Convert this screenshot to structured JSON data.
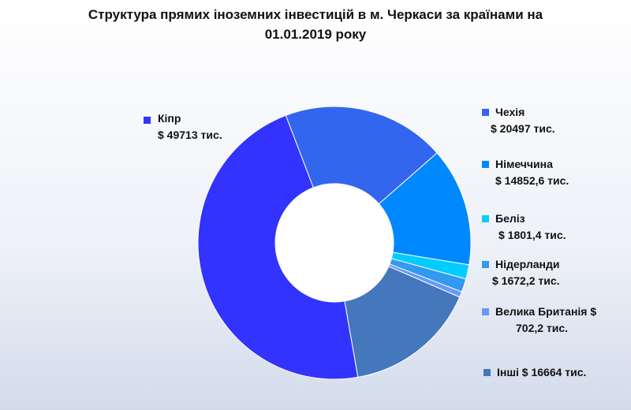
{
  "chart_data": {
    "type": "pie",
    "donut": true,
    "title_lines": [
      "Структура прямих іноземних інвестицій в м. Черкаси за країнами на",
      "01.01.2019 року"
    ],
    "grid": false,
    "legend_placement": "labels-around",
    "slices": [
      {
        "name": "Кіпр",
        "value": 49713,
        "value_label": "$ 49713 тис.",
        "color": "#3333ff"
      },
      {
        "name": "Чехія",
        "value": 20497,
        "value_label": "$ 20497 тис.",
        "color": "#3366ee"
      },
      {
        "name": "Німеччина",
        "value": 14852.6,
        "value_label": "$ 14852,6 тис.",
        "color": "#0088ff"
      },
      {
        "name": "Беліз",
        "value": 1801.4,
        "value_label": "$ 1801,4 тис.",
        "color": "#00ccff"
      },
      {
        "name": "Нідерланди",
        "value": 1672.2,
        "value_label": "$ 1672,2 тис.",
        "color": "#3399ee"
      },
      {
        "name": "Велика Британія",
        "name_suffix": " $",
        "value": 702.2,
        "value_label": "702,2 тис.",
        "color": "#6699ff"
      },
      {
        "name": "Інші",
        "value": 16664,
        "value_label": "$ 16664 тис.",
        "color": "#4477bb",
        "inline": true
      }
    ]
  }
}
